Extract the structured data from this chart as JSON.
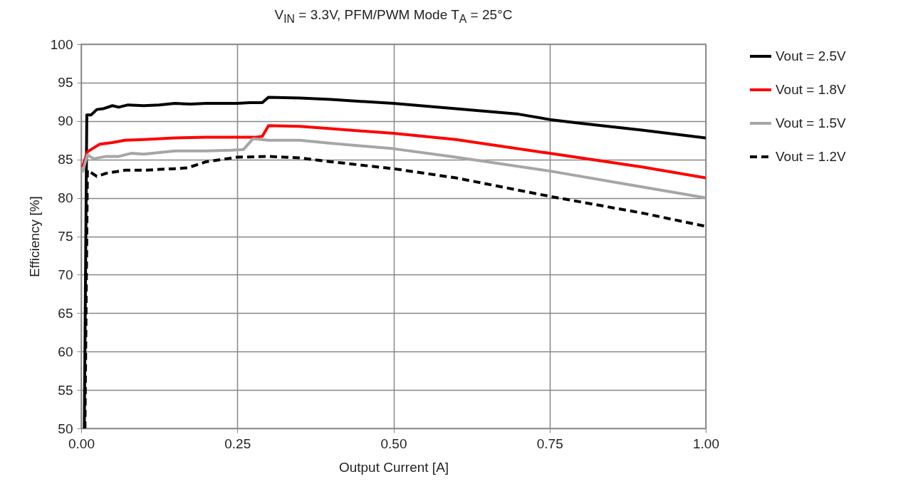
{
  "chart_data": {
    "type": "line",
    "title": "V$_{IN}$ = 3.3V, PFM/PWM Mode T$_{A}$ = 25°C",
    "xlabel": "Output Current  [A]",
    "ylabel": "Efficiency [%]",
    "xlim": [
      0,
      1
    ],
    "ylim": [
      50,
      100
    ],
    "xticks": [
      {
        "value": 0,
        "label": "0.00"
      },
      {
        "value": 0.25,
        "label": "0.25"
      },
      {
        "value": 0.5,
        "label": "0.50"
      },
      {
        "value": 0.75,
        "label": "0.75"
      },
      {
        "value": 1,
        "label": "1.00"
      }
    ],
    "yticks": [
      50,
      55,
      60,
      65,
      70,
      75,
      80,
      85,
      90,
      95,
      100
    ],
    "grid": true,
    "legend": "right",
    "marker": "none",
    "series": [
      {
        "name": "Vout = 2.5V",
        "color": "#000000",
        "line_style": "solid",
        "x": [
          0.005,
          0.009,
          0.016,
          0.025,
          0.035,
          0.05,
          0.06,
          0.075,
          0.1,
          0.125,
          0.15,
          0.175,
          0.2,
          0.25,
          0.27,
          0.29,
          0.3,
          0.35,
          0.4,
          0.5,
          0.6,
          0.7,
          0.75,
          0.8,
          0.9,
          1.0
        ],
        "values": [
          50,
          90.8,
          90.8,
          91.5,
          91.6,
          92.0,
          91.8,
          92.1,
          92.0,
          92.1,
          92.3,
          92.2,
          92.3,
          92.3,
          92.4,
          92.4,
          93.1,
          93.0,
          92.8,
          92.3,
          91.6,
          90.9,
          90.2,
          89.7,
          88.8,
          87.8
        ]
      },
      {
        "name": "Vout = 1.8V",
        "color": "#ff0000",
        "line_style": "solid",
        "x": [
          0.002,
          0.01,
          0.03,
          0.05,
          0.07,
          0.1,
          0.15,
          0.2,
          0.25,
          0.28,
          0.29,
          0.3,
          0.35,
          0.4,
          0.5,
          0.6,
          0.75,
          0.9,
          1.0
        ],
        "values": [
          84.0,
          86.0,
          87.0,
          87.2,
          87.5,
          87.6,
          87.8,
          87.9,
          87.9,
          87.9,
          88.0,
          89.4,
          89.3,
          89.0,
          88.4,
          87.6,
          85.8,
          84.0,
          82.6
        ]
      },
      {
        "name": "Vout = 1.5V",
        "color": "#a6a6a6",
        "line_style": "solid",
        "x": [
          0.002,
          0.01,
          0.02,
          0.04,
          0.06,
          0.08,
          0.1,
          0.15,
          0.2,
          0.24,
          0.26,
          0.275,
          0.3,
          0.35,
          0.4,
          0.5,
          0.6,
          0.75,
          0.9,
          1.0
        ],
        "values": [
          83.3,
          85.6,
          85.1,
          85.4,
          85.4,
          85.8,
          85.7,
          86.1,
          86.1,
          86.2,
          86.3,
          87.7,
          87.5,
          87.5,
          87.1,
          86.4,
          85.3,
          83.5,
          81.4,
          80.0
        ]
      },
      {
        "name": "Vout = 1.2V",
        "color": "#000000",
        "line_style": "dashed",
        "x": [
          0.006,
          0.01,
          0.025,
          0.04,
          0.07,
          0.1,
          0.15,
          0.17,
          0.2,
          0.25,
          0.3,
          0.35,
          0.4,
          0.5,
          0.6,
          0.75,
          0.9,
          1.0
        ],
        "values": [
          50,
          83.6,
          82.8,
          83.2,
          83.6,
          83.6,
          83.8,
          83.9,
          84.7,
          85.3,
          85.4,
          85.2,
          84.7,
          83.8,
          82.6,
          80.2,
          78.0,
          76.3
        ]
      }
    ]
  }
}
